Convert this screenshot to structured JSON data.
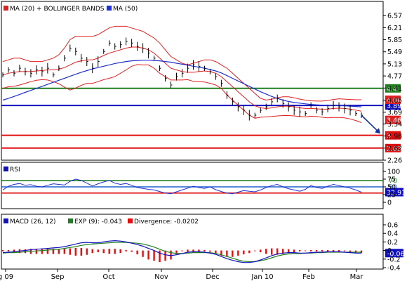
{
  "chart_data": [
    {
      "panel": "price",
      "type": "line",
      "legend": [
        {
          "label": "MA (20) + BOLLINGER BANDS",
          "color": "#e02020"
        },
        {
          "label": "MA (50)",
          "color": "#2030d0"
        }
      ],
      "ylim": [
        2.26,
        6.95
      ],
      "yticks": [
        "6.57",
        "6.21",
        "5.85",
        "5.49",
        "5.13",
        "4.77",
        "4.41",
        "4.05",
        "3.69",
        "3.34",
        "2.98",
        "2.62",
        "2.26"
      ],
      "x_labels": [
        "g 09",
        "Sep",
        "Oct",
        "Nov",
        "Dec",
        "Jan 10",
        "Feb",
        "Mar"
      ],
      "levels": [
        {
          "value": 4.4,
          "label": "4.4",
          "color": "#208020"
        },
        {
          "value": 3.89,
          "label": "3.89",
          "color": "#1010c0"
        },
        {
          "value": 3.0,
          "label": "3",
          "color": "#e01010"
        },
        {
          "value": 2.62,
          "label": "2.62",
          "color": "#e01010"
        }
      ],
      "tags": [
        {
          "value": 4.06,
          "label": "4.06",
          "color": "#e02020"
        },
        {
          "value": 3.46,
          "label": "3.46",
          "color": "#e02020"
        }
      ],
      "series": [
        {
          "name": "price",
          "values": [
            4.8,
            4.95,
            4.85,
            5.0,
            4.9,
            4.85,
            4.95,
            4.9,
            5.0,
            4.8,
            5.0,
            5.3,
            5.6,
            5.5,
            5.3,
            5.2,
            5.0,
            5.2,
            5.5,
            5.75,
            5.65,
            5.7,
            5.8,
            5.75,
            5.65,
            5.6,
            5.45,
            5.3,
            5.0,
            4.7,
            4.5,
            4.75,
            4.85,
            5.0,
            5.1,
            5.05,
            5.0,
            4.9,
            4.75,
            4.55,
            4.2,
            4.0,
            3.85,
            3.75,
            3.6,
            3.6,
            3.75,
            3.85,
            4.0,
            4.1,
            3.95,
            3.85,
            3.75,
            3.7,
            3.65,
            3.9,
            3.75,
            3.7,
            3.8,
            3.9,
            3.85,
            3.8,
            3.75,
            3.65,
            3.6
          ]
        },
        {
          "name": "MA (20)",
          "values": [
            4.8,
            4.85,
            4.88,
            4.9,
            4.9,
            4.9,
            4.92,
            4.93,
            4.95,
            4.95,
            4.97,
            5.02,
            5.1,
            5.18,
            5.22,
            5.25,
            5.25,
            5.3,
            5.38,
            5.45,
            5.5,
            5.55,
            5.6,
            5.63,
            5.63,
            5.6,
            5.55,
            5.45,
            5.3,
            5.15,
            5.0,
            4.95,
            4.9,
            4.88,
            4.88,
            4.9,
            4.92,
            4.9,
            4.85,
            4.75,
            4.6,
            4.45,
            4.3,
            4.15,
            4.0,
            3.88,
            3.82,
            3.8,
            3.82,
            3.85,
            3.87,
            3.87,
            3.85,
            3.82,
            3.8,
            3.8,
            3.79,
            3.78,
            3.78,
            3.8,
            3.81,
            3.8,
            3.78,
            3.75,
            3.72
          ]
        },
        {
          "name": "Upper Band",
          "values": [
            5.2,
            5.25,
            5.3,
            5.3,
            5.25,
            5.2,
            5.2,
            5.2,
            5.25,
            5.3,
            5.4,
            5.6,
            5.85,
            5.95,
            5.95,
            5.95,
            5.95,
            6.0,
            6.1,
            6.2,
            6.25,
            6.25,
            6.25,
            6.2,
            6.15,
            6.1,
            6.0,
            5.9,
            5.75,
            5.55,
            5.35,
            5.25,
            5.15,
            5.1,
            5.15,
            5.2,
            5.25,
            5.25,
            5.2,
            5.1,
            5.0,
            4.85,
            4.7,
            4.55,
            4.4,
            4.25,
            4.1,
            4.05,
            4.08,
            4.12,
            4.15,
            4.15,
            4.12,
            4.08,
            4.05,
            4.03,
            4.02,
            4.02,
            4.04,
            4.07,
            4.09,
            4.08,
            4.07,
            4.06,
            4.06
          ]
        },
        {
          "name": "Lower Band",
          "values": [
            4.4,
            4.45,
            4.46,
            4.5,
            4.55,
            4.6,
            4.64,
            4.66,
            4.65,
            4.6,
            4.54,
            4.44,
            4.35,
            4.41,
            4.49,
            4.55,
            4.55,
            4.6,
            4.66,
            4.7,
            4.75,
            4.85,
            4.95,
            5.06,
            5.11,
            5.1,
            5.1,
            5.0,
            4.85,
            4.75,
            4.65,
            4.65,
            4.65,
            4.66,
            4.61,
            4.6,
            4.59,
            4.55,
            4.5,
            4.4,
            4.2,
            4.05,
            3.9,
            3.75,
            3.6,
            3.51,
            3.54,
            3.55,
            3.56,
            3.58,
            3.59,
            3.59,
            3.58,
            3.56,
            3.55,
            3.57,
            3.56,
            3.54,
            3.52,
            3.53,
            3.53,
            3.52,
            3.49,
            3.44,
            3.38
          ]
        },
        {
          "name": "MA (50)",
          "values": [
            4.05,
            4.1,
            4.16,
            4.22,
            4.28,
            4.34,
            4.4,
            4.46,
            4.52,
            4.58,
            4.64,
            4.7,
            4.76,
            4.82,
            4.88,
            4.93,
            4.98,
            5.02,
            5.06,
            5.1,
            5.14,
            5.17,
            5.2,
            5.22,
            5.23,
            5.24,
            5.24,
            5.23,
            5.22,
            5.2,
            5.18,
            5.15,
            5.12,
            5.09,
            5.06,
            5.03,
            5.0,
            4.96,
            4.92,
            4.86,
            4.78,
            4.7,
            4.62,
            4.54,
            4.46,
            4.38,
            4.3,
            4.23,
            4.16,
            4.1,
            4.05,
            4.01,
            3.98,
            3.96,
            3.94,
            3.92,
            3.91,
            3.9,
            3.89,
            3.89,
            3.89,
            3.88,
            3.87,
            3.86,
            3.85
          ]
        }
      ],
      "projection": {
        "from": 3.6,
        "to": 3.05
      }
    },
    {
      "panel": "rsi",
      "type": "line",
      "legend": [
        {
          "label": "RSI",
          "color": "#1010c0"
        }
      ],
      "ylim": [
        0,
        100
      ],
      "yticks": [
        "100",
        "75",
        "50",
        "25",
        "0"
      ],
      "levels": [
        {
          "value": 70,
          "label": "70",
          "color": "#208020"
        },
        {
          "value": 50,
          "label": "50",
          "color": "#2060d0"
        },
        {
          "value": 30,
          "label": "30",
          "color": "#e01010"
        }
      ],
      "last": {
        "value": 32.91,
        "label": "32.91"
      },
      "series": [
        {
          "name": "RSI",
          "values": [
            40,
            52,
            58,
            61,
            55,
            57,
            52,
            50,
            55,
            60,
            58,
            56,
            68,
            75,
            71,
            62,
            53,
            60,
            66,
            71,
            62,
            58,
            61,
            55,
            48,
            45,
            42,
            40,
            35,
            30,
            28,
            34,
            40,
            46,
            52,
            48,
            45,
            50,
            41,
            35,
            30,
            28,
            33,
            38,
            36,
            34,
            40,
            48,
            54,
            58,
            50,
            44,
            40,
            36,
            42,
            54,
            48,
            45,
            52,
            58,
            54,
            50,
            46,
            40,
            33
          ]
        }
      ]
    },
    {
      "panel": "macd",
      "type": "line",
      "legend": [
        {
          "label": "MACD (26, 12)",
          "color": "#1010c0"
        },
        {
          "label": "EXP (9): -0.043",
          "color": "#208020"
        },
        {
          "label": "Divergence: -0.0202",
          "color": "#e01010"
        }
      ],
      "ylim": [
        -0.4,
        0.6
      ],
      "yticks": [
        "0.6",
        "0.4",
        "0.2",
        "0",
        "-0.2",
        "-0.4"
      ],
      "last": {
        "value": -0.06,
        "label": "-0.06"
      },
      "series": [
        {
          "name": "MACD",
          "values": [
            -0.05,
            -0.04,
            -0.03,
            -0.01,
            0.0,
            0.02,
            0.03,
            0.04,
            0.05,
            0.06,
            0.07,
            0.09,
            0.12,
            0.15,
            0.18,
            0.19,
            0.18,
            0.18,
            0.2,
            0.22,
            0.23,
            0.22,
            0.2,
            0.17,
            0.14,
            0.1,
            0.05,
            0.0,
            -0.06,
            -0.1,
            -0.12,
            -0.1,
            -0.07,
            -0.04,
            -0.03,
            -0.03,
            -0.04,
            -0.06,
            -0.09,
            -0.14,
            -0.19,
            -0.23,
            -0.26,
            -0.28,
            -0.28,
            -0.26,
            -0.22,
            -0.17,
            -0.12,
            -0.08,
            -0.06,
            -0.05,
            -0.05,
            -0.06,
            -0.06,
            -0.05,
            -0.04,
            -0.04,
            -0.03,
            -0.03,
            -0.03,
            -0.04,
            -0.05,
            -0.06,
            -0.06
          ]
        },
        {
          "name": "EXP (9)",
          "values": [
            -0.06,
            -0.05,
            -0.05,
            -0.04,
            -0.03,
            -0.02,
            -0.01,
            0.0,
            0.01,
            0.02,
            0.03,
            0.05,
            0.07,
            0.09,
            0.12,
            0.14,
            0.15,
            0.16,
            0.17,
            0.18,
            0.19,
            0.19,
            0.19,
            0.18,
            0.17,
            0.15,
            0.12,
            0.08,
            0.03,
            -0.02,
            -0.05,
            -0.07,
            -0.07,
            -0.06,
            -0.05,
            -0.05,
            -0.05,
            -0.05,
            -0.07,
            -0.1,
            -0.14,
            -0.18,
            -0.22,
            -0.25,
            -0.26,
            -0.26,
            -0.24,
            -0.21,
            -0.17,
            -0.13,
            -0.1,
            -0.08,
            -0.07,
            -0.07,
            -0.06,
            -0.06,
            -0.05,
            -0.05,
            -0.04,
            -0.04,
            -0.04,
            -0.04,
            -0.04,
            -0.04,
            -0.04
          ]
        }
      ]
    }
  ]
}
